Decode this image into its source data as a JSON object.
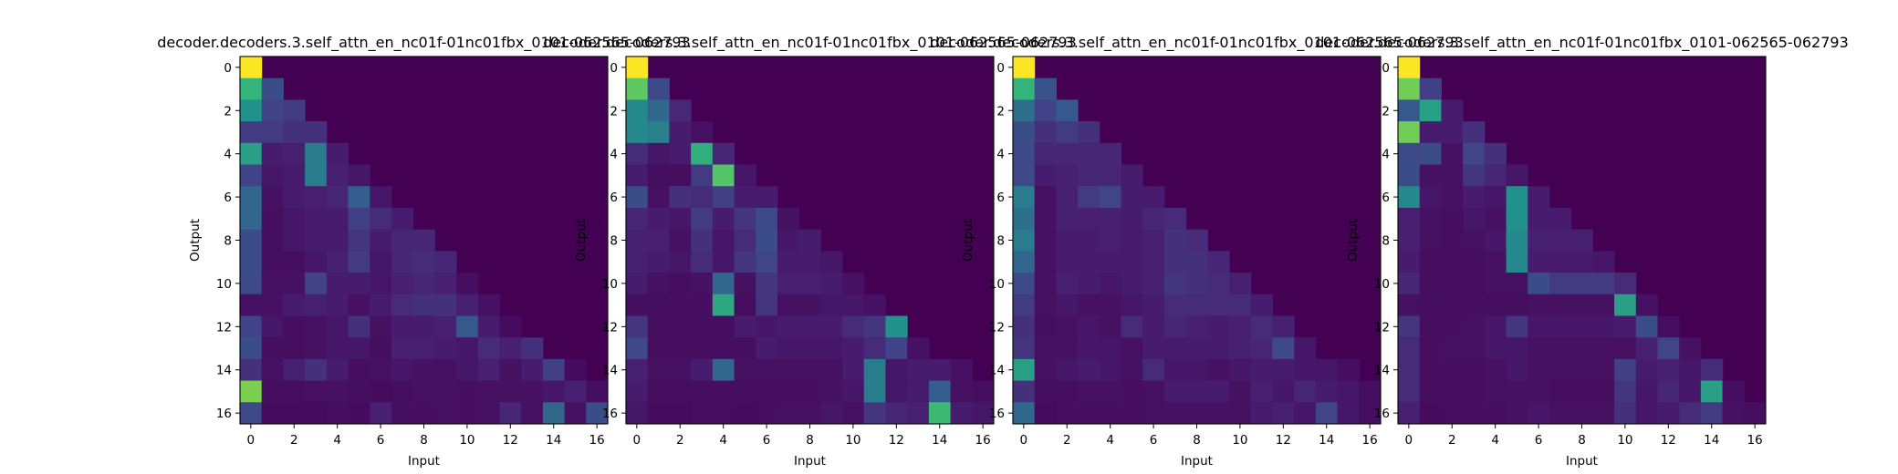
{
  "figure": {
    "xlabel": "Input",
    "ylabel": "Output",
    "ticks": [
      "0",
      "2",
      "4",
      "6",
      "8",
      "10",
      "12",
      "14",
      "16"
    ]
  },
  "chart_data": [
    {
      "type": "heatmap",
      "title": "decoder.decoders.3.self_attn_en_nc01f-01nc01fbx_0101-062565-062793",
      "xlabel": "Input",
      "ylabel": "Output",
      "x_range": [
        0,
        16
      ],
      "y_range": [
        0,
        16
      ],
      "colormap": "viridis",
      "rows": [
        [
          1.0
        ],
        [
          0.62,
          0.3
        ],
        [
          0.5,
          0.25,
          0.22
        ],
        [
          0.22,
          0.22,
          0.18,
          0.18
        ],
        [
          0.55,
          0.1,
          0.12,
          0.45,
          0.1
        ],
        [
          0.25,
          0.08,
          0.1,
          0.45,
          0.12,
          0.08
        ],
        [
          0.4,
          0.06,
          0.1,
          0.12,
          0.14,
          0.38,
          0.08
        ],
        [
          0.4,
          0.05,
          0.08,
          0.1,
          0.1,
          0.24,
          0.16,
          0.1
        ],
        [
          0.3,
          0.05,
          0.08,
          0.1,
          0.1,
          0.2,
          0.1,
          0.14,
          0.14
        ],
        [
          0.3,
          0.05,
          0.05,
          0.08,
          0.12,
          0.22,
          0.08,
          0.14,
          0.16,
          0.14
        ],
        [
          0.28,
          0.06,
          0.06,
          0.25,
          0.1,
          0.1,
          0.08,
          0.12,
          0.14,
          0.12,
          0.05
        ],
        [
          0.06,
          0.06,
          0.1,
          0.12,
          0.1,
          0.06,
          0.1,
          0.16,
          0.18,
          0.18,
          0.12,
          0.06
        ],
        [
          0.25,
          0.08,
          0.05,
          0.06,
          0.08,
          0.18,
          0.06,
          0.1,
          0.1,
          0.12,
          0.35,
          0.1,
          0.04
        ],
        [
          0.3,
          0.05,
          0.05,
          0.06,
          0.08,
          0.08,
          0.05,
          0.12,
          0.12,
          0.1,
          0.08,
          0.16,
          0.12,
          0.18
        ],
        [
          0.18,
          0.06,
          0.12,
          0.18,
          0.1,
          0.05,
          0.06,
          0.08,
          0.06,
          0.06,
          0.08,
          0.12,
          0.06,
          0.1,
          0.24,
          0.04
        ],
        [
          0.8,
          0.05,
          0.05,
          0.06,
          0.06,
          0.05,
          0.04,
          0.05,
          0.06,
          0.06,
          0.05,
          0.06,
          0.06,
          0.06,
          0.08,
          0.12,
          0.05
        ],
        [
          0.28,
          0.04,
          0.04,
          0.04,
          0.05,
          0.04,
          0.12,
          0.05,
          0.05,
          0.06,
          0.05,
          0.06,
          0.14,
          0.06,
          0.4,
          0.06,
          0.3
        ]
      ]
    },
    {
      "type": "heatmap",
      "title": "decoder.decoders.3.self_attn_en_nc01f-01nc01fbx_0101-062565-062793",
      "xlabel": "Input",
      "ylabel": "Output",
      "x_range": [
        0,
        16
      ],
      "y_range": [
        0,
        16
      ],
      "colormap": "viridis",
      "rows": [
        [
          1.0
        ],
        [
          0.75,
          0.28
        ],
        [
          0.48,
          0.4,
          0.15
        ],
        [
          0.48,
          0.46,
          0.1,
          0.06
        ],
        [
          0.16,
          0.08,
          0.1,
          0.6,
          0.14
        ],
        [
          0.1,
          0.05,
          0.05,
          0.22,
          0.72,
          0.08
        ],
        [
          0.3,
          0.06,
          0.18,
          0.16,
          0.24,
          0.1,
          0.1
        ],
        [
          0.14,
          0.1,
          0.08,
          0.22,
          0.1,
          0.2,
          0.28,
          0.06
        ],
        [
          0.12,
          0.12,
          0.06,
          0.18,
          0.08,
          0.16,
          0.3,
          0.08,
          0.1
        ],
        [
          0.12,
          0.1,
          0.08,
          0.16,
          0.08,
          0.2,
          0.26,
          0.1,
          0.1,
          0.08
        ],
        [
          0.1,
          0.06,
          0.05,
          0.06,
          0.4,
          0.06,
          0.2,
          0.12,
          0.12,
          0.1,
          0.06
        ],
        [
          0.05,
          0.05,
          0.05,
          0.05,
          0.58,
          0.05,
          0.2,
          0.06,
          0.06,
          0.08,
          0.08,
          0.06
        ],
        [
          0.2,
          0.05,
          0.05,
          0.05,
          0.05,
          0.1,
          0.08,
          0.1,
          0.1,
          0.1,
          0.16,
          0.2,
          0.5
        ],
        [
          0.28,
          0.05,
          0.05,
          0.05,
          0.05,
          0.05,
          0.1,
          0.08,
          0.08,
          0.08,
          0.1,
          0.16,
          0.25,
          0.06
        ],
        [
          0.12,
          0.06,
          0.06,
          0.1,
          0.4,
          0.06,
          0.06,
          0.06,
          0.06,
          0.06,
          0.1,
          0.45,
          0.08,
          0.1,
          0.1,
          0.06
        ],
        [
          0.1,
          0.05,
          0.05,
          0.05,
          0.05,
          0.05,
          0.05,
          0.05,
          0.05,
          0.06,
          0.08,
          0.45,
          0.08,
          0.1,
          0.38,
          0.06,
          0.05
        ],
        [
          0.08,
          0.04,
          0.04,
          0.05,
          0.05,
          0.04,
          0.05,
          0.06,
          0.06,
          0.08,
          0.06,
          0.2,
          0.14,
          0.12,
          0.65,
          0.1,
          0.08
        ]
      ]
    },
    {
      "type": "heatmap",
      "title": "decoder.decoders.3.self_attn_en_nc01f-01nc01fbx_0101-062565-062793",
      "xlabel": "Input",
      "ylabel": "Output",
      "x_range": [
        0,
        16
      ],
      "y_range": [
        0,
        16
      ],
      "colormap": "viridis",
      "rows": [
        [
          1.0
        ],
        [
          0.62,
          0.32
        ],
        [
          0.42,
          0.25,
          0.35
        ],
        [
          0.3,
          0.18,
          0.22,
          0.18
        ],
        [
          0.28,
          0.14,
          0.14,
          0.14,
          0.14
        ],
        [
          0.28,
          0.1,
          0.12,
          0.14,
          0.14,
          0.1
        ],
        [
          0.45,
          0.06,
          0.12,
          0.22,
          0.26,
          0.1,
          0.1
        ],
        [
          0.42,
          0.06,
          0.12,
          0.12,
          0.12,
          0.1,
          0.14,
          0.16
        ],
        [
          0.45,
          0.06,
          0.1,
          0.1,
          0.12,
          0.1,
          0.12,
          0.18,
          0.16
        ],
        [
          0.4,
          0.06,
          0.1,
          0.1,
          0.1,
          0.1,
          0.12,
          0.18,
          0.18,
          0.14
        ],
        [
          0.28,
          0.06,
          0.12,
          0.1,
          0.08,
          0.1,
          0.12,
          0.2,
          0.18,
          0.16,
          0.12
        ],
        [
          0.22,
          0.06,
          0.08,
          0.06,
          0.06,
          0.08,
          0.1,
          0.16,
          0.16,
          0.16,
          0.16,
          0.1
        ],
        [
          0.18,
          0.05,
          0.06,
          0.08,
          0.06,
          0.16,
          0.1,
          0.14,
          0.12,
          0.1,
          0.12,
          0.16,
          0.12
        ],
        [
          0.2,
          0.06,
          0.06,
          0.08,
          0.08,
          0.06,
          0.1,
          0.1,
          0.1,
          0.1,
          0.12,
          0.14,
          0.28,
          0.08
        ],
        [
          0.55,
          0.06,
          0.08,
          0.1,
          0.08,
          0.06,
          0.16,
          0.08,
          0.08,
          0.06,
          0.08,
          0.1,
          0.1,
          0.08,
          0.08,
          0.05
        ],
        [
          0.18,
          0.05,
          0.05,
          0.06,
          0.06,
          0.05,
          0.06,
          0.1,
          0.1,
          0.1,
          0.06,
          0.12,
          0.08,
          0.14,
          0.1,
          0.08,
          0.05
        ],
        [
          0.4,
          0.04,
          0.05,
          0.05,
          0.05,
          0.05,
          0.06,
          0.06,
          0.06,
          0.06,
          0.06,
          0.1,
          0.12,
          0.08,
          0.26,
          0.08,
          0.05
        ]
      ]
    },
    {
      "type": "heatmap",
      "title": "decoder.decoders.3.self_attn_en_nc01f-01nc01fbx_0101-062565-062793",
      "xlabel": "Input",
      "ylabel": "Output",
      "x_range": [
        0,
        16
      ],
      "y_range": [
        0,
        16
      ],
      "colormap": "viridis",
      "rows": [
        [
          1.0
        ],
        [
          0.78,
          0.24
        ],
        [
          0.35,
          0.55,
          0.1
        ],
        [
          0.78,
          0.1,
          0.1,
          0.18
        ],
        [
          0.28,
          0.3,
          0.06,
          0.26,
          0.18
        ],
        [
          0.3,
          0.06,
          0.06,
          0.2,
          0.14,
          0.08
        ],
        [
          0.48,
          0.08,
          0.06,
          0.1,
          0.08,
          0.5,
          0.1
        ],
        [
          0.12,
          0.06,
          0.05,
          0.08,
          0.06,
          0.5,
          0.1,
          0.1
        ],
        [
          0.12,
          0.06,
          0.05,
          0.06,
          0.08,
          0.48,
          0.12,
          0.12,
          0.12
        ],
        [
          0.1,
          0.05,
          0.05,
          0.05,
          0.06,
          0.48,
          0.1,
          0.1,
          0.1,
          0.08
        ],
        [
          0.14,
          0.05,
          0.05,
          0.05,
          0.06,
          0.06,
          0.3,
          0.22,
          0.22,
          0.22,
          0.16
        ],
        [
          0.06,
          0.05,
          0.05,
          0.05,
          0.05,
          0.05,
          0.06,
          0.06,
          0.06,
          0.06,
          0.55,
          0.06
        ],
        [
          0.2,
          0.05,
          0.05,
          0.06,
          0.08,
          0.2,
          0.08,
          0.08,
          0.08,
          0.08,
          0.1,
          0.3,
          0.05
        ],
        [
          0.16,
          0.05,
          0.06,
          0.06,
          0.08,
          0.08,
          0.06,
          0.06,
          0.06,
          0.06,
          0.06,
          0.12,
          0.26,
          0.06
        ],
        [
          0.16,
          0.05,
          0.05,
          0.05,
          0.06,
          0.08,
          0.06,
          0.06,
          0.06,
          0.06,
          0.24,
          0.1,
          0.12,
          0.08,
          0.16
        ],
        [
          0.16,
          0.05,
          0.05,
          0.05,
          0.06,
          0.06,
          0.06,
          0.05,
          0.05,
          0.05,
          0.2,
          0.08,
          0.14,
          0.08,
          0.55,
          0.05
        ],
        [
          0.12,
          0.04,
          0.05,
          0.05,
          0.05,
          0.06,
          0.08,
          0.06,
          0.06,
          0.06,
          0.18,
          0.08,
          0.1,
          0.16,
          0.22,
          0.06,
          0.05
        ]
      ]
    }
  ]
}
